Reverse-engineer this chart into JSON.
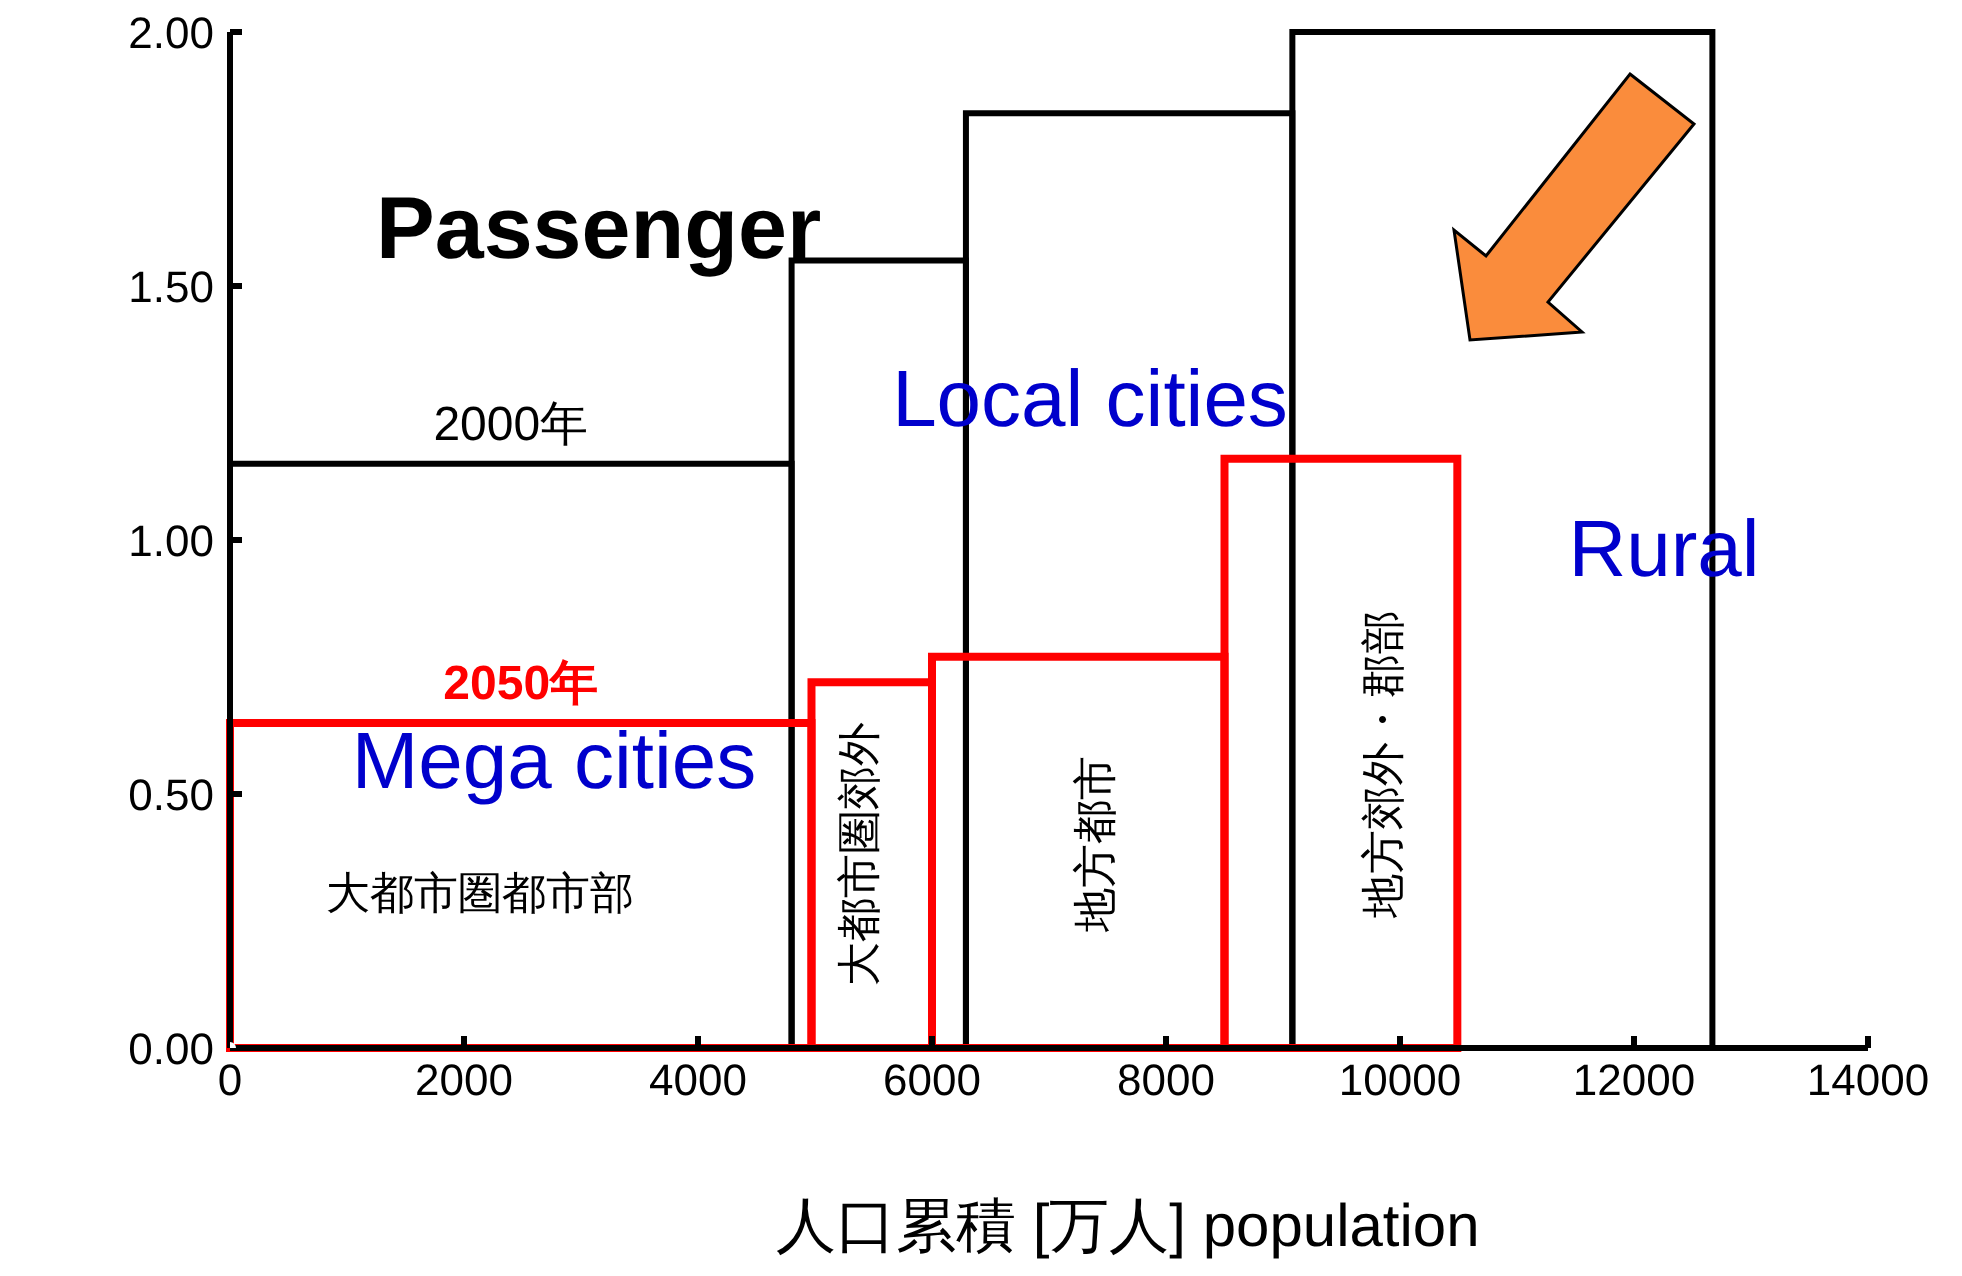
{
  "chart_data": {
    "type": "histogram",
    "title": "Passenger",
    "xlabel": "人口累積 [万人] population",
    "bins": [
      0,
      4800,
      6290,
      9080,
      12670
    ],
    "series": [
      {
        "name": "2000年",
        "color": "#000000",
        "values": [
          1.15,
          1.55,
          1.84,
          2.0
        ]
      },
      {
        "name": "2050年",
        "color": "#ff0000",
        "bins": [
          0,
          4970,
          6000,
          8500,
          10490
        ],
        "values": [
          0.64,
          0.72,
          0.77,
          1.16
        ]
      }
    ],
    "annotations": [
      "Mega cities",
      "Local cities",
      "Rural",
      "大都市圏都市部",
      "大都市圏郊外",
      "地方都市",
      "地方郊外・郡部"
    ],
    "xlim": [
      0,
      14000
    ],
    "xticks": [
      0,
      2000,
      4000,
      6000,
      8000,
      10000,
      12000,
      14000
    ],
    "ylim": [
      0,
      2
    ],
    "yticks": [
      {
        "value": 0,
        "label": "0.00"
      },
      {
        "value": 0.5,
        "label": "0.50"
      },
      {
        "value": 1,
        "label": "1.00"
      },
      {
        "value": 1.5,
        "label": "1.50"
      },
      {
        "value": 2,
        "label": "2.00"
      }
    ],
    "grid": false
  }
}
